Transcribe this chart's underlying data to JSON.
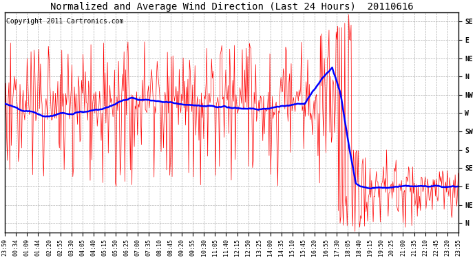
{
  "title": "Normalized and Average Wind Direction (Last 24 Hours)  20110616",
  "copyright": "Copyright 2011 Cartronics.com",
  "background_color": "#ffffff",
  "plot_bg_color": "#ffffff",
  "grid_color": "#aaaaaa",
  "ytick_labels": [
    "SE",
    "E",
    "NE",
    "N",
    "NW",
    "W",
    "SW",
    "S",
    "SE",
    "E",
    "NE",
    "N"
  ],
  "xtick_labels": [
    "23:59",
    "00:34",
    "01:09",
    "01:44",
    "02:20",
    "02:55",
    "03:30",
    "04:05",
    "04:40",
    "05:15",
    "05:50",
    "06:25",
    "07:00",
    "07:35",
    "08:10",
    "08:45",
    "09:20",
    "09:55",
    "10:30",
    "11:05",
    "11:40",
    "12:15",
    "12:50",
    "13:25",
    "14:00",
    "14:35",
    "15:10",
    "15:45",
    "16:20",
    "16:55",
    "17:30",
    "18:05",
    "18:40",
    "19:15",
    "19:50",
    "20:25",
    "21:00",
    "21:35",
    "22:10",
    "22:45",
    "23:20",
    "23:55"
  ],
  "red_line_color": "#ff0000",
  "blue_line_color": "#0000ff",
  "title_fontsize": 10,
  "axis_label_fontsize": 6,
  "copyright_fontsize": 7,
  "figwidth": 6.9,
  "figheight": 3.75,
  "dpi": 100
}
